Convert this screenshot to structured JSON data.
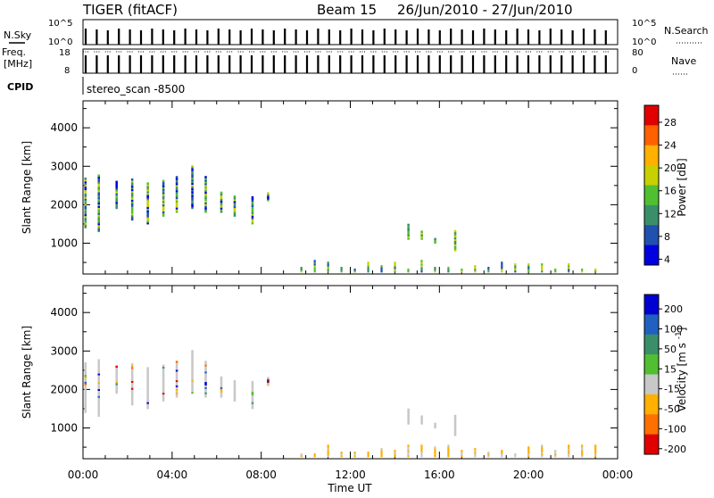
{
  "header": {
    "radar": "TIGER (fitACF)",
    "beam": "Beam 15",
    "dates": "26/Jun/2010 - 27/Jun/2010"
  },
  "top_panel": {
    "nsky_label": "N.Sky",
    "nsky_ticks": [
      "10^5",
      "10^0"
    ],
    "nsearch_label": "N.Search",
    "nsearch_ticks": [
      "10^5",
      "10^0"
    ],
    "freq_label_1": "Freq.",
    "freq_label_2": "[MHz]",
    "freq_ticks": [
      "18",
      "8"
    ],
    "nave_label": "Nave",
    "nave_ticks": [
      "80",
      "0"
    ],
    "cpid_label": "CPID",
    "cpid_value": "stereo_scan -8500"
  },
  "chart_data": [
    {
      "type": "heatmap",
      "title": "",
      "ylabel": "Slant Range [km]",
      "ylim": [
        200,
        4700
      ],
      "yticks": [
        1000,
        2000,
        3000,
        4000
      ],
      "xlim": [
        0,
        24
      ],
      "colorbar_label": "Power [dB]",
      "colorbar_ticks": [
        "28",
        "24",
        "20",
        "16",
        "12",
        "8",
        "4"
      ],
      "colorbar_colors": [
        "#e00000",
        "#ff6000",
        "#ffb000",
        "#c8d000",
        "#50c030",
        "#3a8f6a",
        "#2050b0",
        "#0000e0"
      ]
    },
    {
      "type": "heatmap",
      "title": "",
      "ylabel": "Slant Range [km]",
      "ylim": [
        200,
        4700
      ],
      "yticks": [
        1000,
        2000,
        3000,
        4000
      ],
      "xlim": [
        0,
        24
      ],
      "xlabel": "Time UT",
      "xticks": [
        "00:00",
        "04:00",
        "08:00",
        "12:00",
        "16:00",
        "20:00",
        "00:00"
      ],
      "colorbar_label": "Velocity [m s^-1]",
      "colorbar_ticks": [
        "200",
        "100",
        "50",
        "15",
        "-15",
        "-50",
        "-100",
        "-200"
      ],
      "colorbar_colors": [
        "#0000d0",
        "#2060c0",
        "#3a8f6a",
        "#50c030",
        "#c8c8c8",
        "#ffb000",
        "#ff7000",
        "#e00000"
      ]
    }
  ]
}
